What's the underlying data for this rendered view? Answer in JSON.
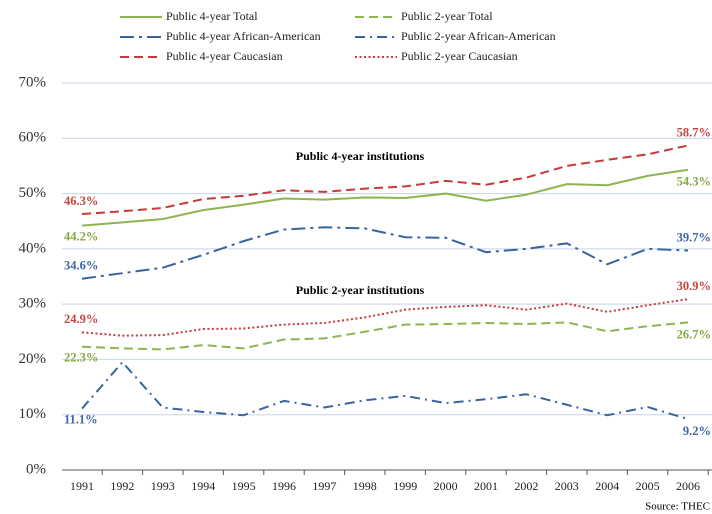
{
  "chart_data": {
    "type": "line",
    "categories": [
      "1991",
      "1992",
      "1993",
      "1994",
      "1995",
      "1996",
      "1997",
      "1998",
      "1999",
      "2000",
      "2001",
      "2002",
      "2003",
      "2004",
      "2005",
      "2006"
    ],
    "ylim": [
      0,
      70
    ],
    "yticks": [
      {
        "value": 0,
        "label": "0%"
      },
      {
        "value": 10,
        "label": "10%"
      },
      {
        "value": 20,
        "label": "20%"
      },
      {
        "value": 30,
        "label": "30%"
      },
      {
        "value": 40,
        "label": "40%"
      },
      {
        "value": 50,
        "label": "50%"
      },
      {
        "value": 60,
        "label": "60%"
      },
      {
        "value": 70,
        "label": "70%"
      }
    ],
    "grid": true,
    "annotations": [
      "Public 4-year institutions",
      "Public 2-year institutions"
    ],
    "source": "Source: THEC",
    "series": [
      {
        "name": "Public 4-year Total",
        "color": "#8db550",
        "style": "solid",
        "values": [
          44.2,
          44.8,
          45.4,
          47.0,
          48.0,
          49.1,
          48.9,
          49.3,
          49.2,
          50.0,
          48.7,
          49.8,
          51.7,
          51.5,
          53.2,
          54.3
        ],
        "value_labels": [
          "44.2%",
          null,
          null,
          null,
          null,
          null,
          null,
          null,
          null,
          null,
          null,
          null,
          null,
          null,
          null,
          "54.3%"
        ]
      },
      {
        "name": "Public 2-year Total",
        "color": "#8db550",
        "style": "dashed",
        "values": [
          22.3,
          22.0,
          21.8,
          22.6,
          22.0,
          23.6,
          23.8,
          25.0,
          26.3,
          26.4,
          26.6,
          26.4,
          26.7,
          25.1,
          26.0,
          26.7
        ],
        "value_labels": [
          "22.3%",
          null,
          null,
          null,
          null,
          null,
          null,
          null,
          null,
          null,
          null,
          null,
          null,
          null,
          null,
          "26.7%"
        ]
      },
      {
        "name": "Public 4-year African-American",
        "color": "#3a64a0",
        "style": "dashdot-long",
        "values": [
          34.6,
          35.6,
          36.6,
          38.9,
          41.4,
          43.5,
          43.9,
          43.7,
          42.1,
          42.0,
          39.4,
          40.0,
          41.0,
          37.2,
          40.0,
          39.7
        ],
        "value_labels": [
          "34.6%",
          null,
          null,
          null,
          null,
          null,
          null,
          null,
          null,
          null,
          null,
          null,
          null,
          null,
          null,
          "39.7%"
        ]
      },
      {
        "name": "Public 2-year African-American",
        "color": "#3a64a0",
        "style": "dashdot",
        "values": [
          11.1,
          19.5,
          11.3,
          10.5,
          9.9,
          12.5,
          11.3,
          12.6,
          13.4,
          12.1,
          12.8,
          13.7,
          11.8,
          9.9,
          11.4,
          9.2
        ],
        "value_labels": [
          "11.1%",
          null,
          null,
          null,
          null,
          null,
          null,
          null,
          null,
          null,
          null,
          null,
          null,
          null,
          null,
          "9.2%"
        ]
      },
      {
        "name": "Public 4-year Caucasian",
        "color": "#c8393a",
        "style": "dashed",
        "values": [
          46.3,
          46.8,
          47.4,
          49.0,
          49.6,
          50.6,
          50.3,
          50.9,
          51.3,
          52.3,
          51.6,
          52.9,
          55.0,
          56.1,
          57.1,
          58.7
        ],
        "value_labels": [
          "46.3%",
          null,
          null,
          null,
          null,
          null,
          null,
          null,
          null,
          null,
          null,
          null,
          null,
          null,
          null,
          "58.7%"
        ]
      },
      {
        "name": "Public 2-year Caucasian",
        "color": "#c8393a",
        "style": "dotted",
        "values": [
          24.9,
          24.3,
          24.4,
          25.5,
          25.6,
          26.3,
          26.6,
          27.6,
          29.0,
          29.5,
          29.8,
          29.0,
          30.1,
          28.6,
          29.8,
          30.9
        ],
        "value_labels": [
          "24.9%",
          null,
          null,
          null,
          null,
          null,
          null,
          null,
          null,
          null,
          null,
          null,
          null,
          null,
          null,
          "30.9%"
        ]
      }
    ]
  }
}
